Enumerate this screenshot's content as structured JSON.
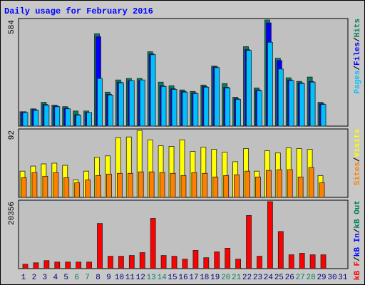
{
  "chart_data": [
    {
      "type": "bar",
      "title": "Daily usage for February 2016",
      "ylim": [
        0,
        584
      ],
      "yticks": [
        584
      ],
      "legend_separator": "/",
      "series": [
        {
          "name": "Hits",
          "color": "#00805c",
          "values": [
            79,
            95,
            131,
            115,
            107,
            83,
            83,
            508,
            187,
            254,
            262,
            262,
            409,
            242,
            222,
            199,
            191,
            226,
            330,
            234,
            159,
            437,
            210,
            584,
            373,
            266,
            246,
            270,
            131,
            null,
            null
          ]
        },
        {
          "name": "Files",
          "color": "#0000ff",
          "values": [
            79,
            91,
            119,
            111,
            99,
            63,
            75,
            492,
            175,
            242,
            250,
            250,
            397,
            222,
            206,
            191,
            183,
            218,
            326,
            214,
            151,
            421,
            199,
            568,
            361,
            254,
            238,
            246,
            123,
            null,
            null
          ]
        },
        {
          "name": "Pages",
          "color": "#00c0ff",
          "values": [
            75,
            87,
            115,
            107,
            95,
            60,
            75,
            262,
            171,
            238,
            250,
            254,
            393,
            218,
            202,
            187,
            179,
            214,
            322,
            210,
            147,
            417,
            195,
            461,
            314,
            250,
            234,
            242,
            119,
            null,
            null
          ]
        }
      ]
    },
    {
      "type": "bar",
      "ylim": [
        0,
        92
      ],
      "yticks": [
        92
      ],
      "legend_separator": "/",
      "series": [
        {
          "name": "Visits",
          "color": "#ffff00",
          "values": [
            36,
            43,
            46,
            47,
            44,
            24,
            36,
            55,
            57,
            82,
            83,
            92,
            79,
            71,
            70,
            79,
            63,
            69,
            66,
            62,
            49,
            67,
            36,
            64,
            61,
            68,
            67,
            66,
            30,
            null,
            null
          ]
        },
        {
          "name": "Sites",
          "color": "#ff8000",
          "values": [
            27,
            34,
            29,
            34,
            27,
            20,
            24,
            30,
            32,
            33,
            33,
            35,
            35,
            34,
            33,
            30,
            34,
            33,
            28,
            30,
            31,
            36,
            28,
            37,
            38,
            38,
            28,
            41,
            20,
            null,
            null
          ]
        }
      ]
    },
    {
      "type": "bar",
      "ylim": [
        0,
        20356
      ],
      "yticks": [
        20356
      ],
      "legend_separator": "/",
      "categories": [
        "1",
        "2",
        "3",
        "4",
        "5",
        "6",
        "7",
        "8",
        "9",
        "10",
        "11",
        "12",
        "13",
        "14",
        "15",
        "16",
        "17",
        "18",
        "19",
        "20",
        "21",
        "22",
        "23",
        "24",
        "25",
        "26",
        "27",
        "28",
        "29",
        "30",
        "31"
      ],
      "category_colors": [
        "#000080",
        "#000080",
        "#000080",
        "#000080",
        "#000080",
        "#00805c",
        "#00805c",
        "#000080",
        "#000080",
        "#000080",
        "#000080",
        "#000080",
        "#00805c",
        "#00805c",
        "#000080",
        "#000080",
        "#000080",
        "#000080",
        "#000080",
        "#00805c",
        "#00805c",
        "#000080",
        "#000080",
        "#000080",
        "#000080",
        "#000080",
        "#00805c",
        "#00805c",
        "#000080",
        "#000080",
        "#000080"
      ],
      "series": [
        {
          "name": "kB Out",
          "color": "#00805c",
          "values": [
            0,
            0,
            0,
            0,
            0,
            0,
            0,
            0,
            0,
            0,
            0,
            0,
            0,
            0,
            0,
            0,
            0,
            0,
            0,
            0,
            0,
            0,
            0,
            0,
            0,
            0,
            0,
            0,
            0,
            null,
            null
          ]
        },
        {
          "name": "kB In",
          "color": "#0000ff",
          "values": [
            0,
            0,
            0,
            0,
            0,
            0,
            0,
            0,
            0,
            0,
            0,
            0,
            0,
            0,
            0,
            0,
            0,
            0,
            0,
            0,
            0,
            0,
            0,
            0,
            0,
            0,
            0,
            0,
            0,
            null,
            null
          ]
        },
        {
          "name": "kB F",
          "color": "#ff0000",
          "values": [
            1328,
            1770,
            2434,
            1992,
            1992,
            1992,
            1992,
            13720,
            3762,
            3762,
            3983,
            4868,
            15269,
            3983,
            3762,
            2877,
            5532,
            3319,
            5090,
            6196,
            2877,
            16155,
            3762,
            20356,
            11286,
            4205,
            4647,
            4205,
            4205,
            null,
            null
          ]
        }
      ]
    }
  ]
}
